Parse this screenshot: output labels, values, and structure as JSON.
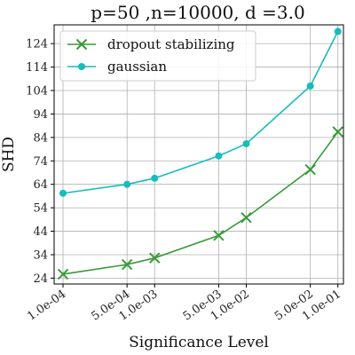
{
  "chart_data": {
    "type": "line",
    "title": "p=50 ,n=10000, d =3.0",
    "xlabel": "Significance Level",
    "ylabel": "SHD",
    "x_scale": "log",
    "xlim": [
      8e-05,
      0.115
    ],
    "ylim": [
      21.5,
      132
    ],
    "grid": true,
    "legend_position": "top-left",
    "x_ticks": [
      {
        "value": 0.0001,
        "label": "1.0e-04"
      },
      {
        "value": 0.0005,
        "label": "5.0e-04"
      },
      {
        "value": 0.001,
        "label": "1.0e-03"
      },
      {
        "value": 0.005,
        "label": "5.0e-03"
      },
      {
        "value": 0.01,
        "label": "1.0e-02"
      },
      {
        "value": 0.05,
        "label": "5.0e-02"
      },
      {
        "value": 0.1,
        "label": "1.0e-01"
      }
    ],
    "y_ticks": [
      24,
      34,
      44,
      54,
      64,
      74,
      84,
      94,
      104,
      114,
      124
    ],
    "x": [
      0.0001,
      0.0005,
      0.001,
      0.005,
      0.01,
      0.05,
      0.1
    ],
    "series": [
      {
        "name": "dropout stabilizing",
        "marker": "x",
        "color": "#3a9a3a",
        "values": [
          25.7,
          29.8,
          32.6,
          42.2,
          49.8,
          70.3,
          86.4
        ]
      },
      {
        "name": "gaussian",
        "marker": "circle",
        "color": "#17bcbc",
        "values": [
          60.2,
          64.0,
          66.6,
          76.1,
          81.3,
          105.9,
          129.2
        ]
      }
    ]
  }
}
